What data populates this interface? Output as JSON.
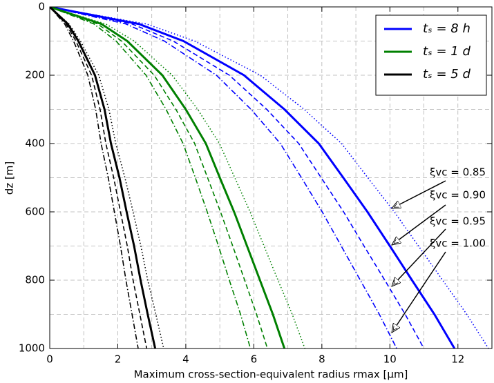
{
  "chart_data": {
    "type": "line",
    "xlabel": "Maximum cross-section-equivalent radius rmax [µm]",
    "ylabel": "dz [m]",
    "xlim": [
      0,
      13
    ],
    "xticks": [
      0,
      2,
      4,
      6,
      8,
      10,
      12
    ],
    "xminor": [
      1,
      3,
      5,
      7,
      9,
      11,
      13
    ],
    "ylim": [
      0,
      1000
    ],
    "yticks": [
      0,
      200,
      400,
      600,
      800,
      1000
    ],
    "yminor": [
      100,
      300,
      500,
      700,
      900
    ],
    "y_inverted": true,
    "grid": true,
    "legend_loc": "upper right",
    "depths": [
      0,
      50,
      100,
      200,
      300,
      400,
      500,
      600,
      700,
      800,
      900,
      1000
    ],
    "series": [
      {
        "color": "#0000ff",
        "style": "dotted",
        "values": [
          0,
          2.84,
          4.26,
          6.19,
          7.48,
          8.58,
          9.35,
          10.13,
          10.84,
          11.55,
          12.26,
          12.9
        ]
      },
      {
        "name": "tₛ = 8 h",
        "color": "#0000ff",
        "style": "solid",
        "values": [
          0,
          2.62,
          3.93,
          5.71,
          6.9,
          7.91,
          8.63,
          9.34,
          10.0,
          10.65,
          11.31,
          11.9
        ]
      },
      {
        "color": "#0000ff",
        "style": "dashed",
        "values": [
          0,
          2.42,
          3.63,
          5.28,
          6.38,
          7.32,
          7.98,
          8.64,
          9.24,
          9.85,
          10.45,
          11.0
        ]
      },
      {
        "color": "#0000ff",
        "style": "dashdot",
        "values": [
          0,
          2.24,
          3.37,
          4.9,
          5.92,
          6.78,
          7.4,
          8.01,
          8.57,
          9.13,
          9.69,
          10.2
        ]
      },
      {
        "color": "#008000",
        "style": "dotted",
        "values": [
          0,
          1.65,
          2.48,
          3.6,
          4.35,
          4.99,
          5.44,
          5.89,
          6.3,
          6.71,
          7.13,
          7.5
        ]
      },
      {
        "name": "tₛ = 1 d",
        "color": "#008000",
        "style": "solid",
        "values": [
          0,
          1.52,
          2.28,
          3.31,
          4.0,
          4.59,
          5.0,
          5.42,
          5.8,
          6.18,
          6.56,
          6.9
        ]
      },
      {
        "color": "#008000",
        "style": "dashed",
        "values": [
          0,
          1.41,
          2.11,
          3.07,
          3.71,
          4.26,
          4.64,
          5.02,
          5.38,
          5.73,
          6.08,
          6.4
        ]
      },
      {
        "color": "#008000",
        "style": "dashdot",
        "values": [
          0,
          1.3,
          1.95,
          2.83,
          3.42,
          3.92,
          4.28,
          4.63,
          4.96,
          5.28,
          5.61,
          5.9
        ]
      },
      {
        "color": "#000000",
        "style": "dotted",
        "values": [
          0,
          0.57,
          0.9,
          1.44,
          1.74,
          1.94,
          2.21,
          2.45,
          2.68,
          2.88,
          3.12,
          3.35
        ]
      },
      {
        "name": "tₛ = 5 d",
        "color": "#000000",
        "style": "solid",
        "values": [
          0,
          0.53,
          0.84,
          1.33,
          1.61,
          1.8,
          2.05,
          2.26,
          2.48,
          2.67,
          2.88,
          3.1
        ]
      },
      {
        "color": "#000000",
        "style": "dashed",
        "values": [
          0,
          0.48,
          0.77,
          1.23,
          1.48,
          1.65,
          1.88,
          2.08,
          2.28,
          2.45,
          2.65,
          2.85
        ]
      },
      {
        "color": "#000000",
        "style": "dashdot",
        "values": [
          0,
          0.44,
          0.7,
          1.12,
          1.35,
          1.51,
          1.72,
          1.9,
          2.08,
          2.24,
          2.42,
          2.6
        ]
      }
    ],
    "annotations": [
      "ξvc = 0.85",
      "ξvc = 0.90",
      "ξvc = 0.95",
      "ξvc = 1.00"
    ]
  }
}
